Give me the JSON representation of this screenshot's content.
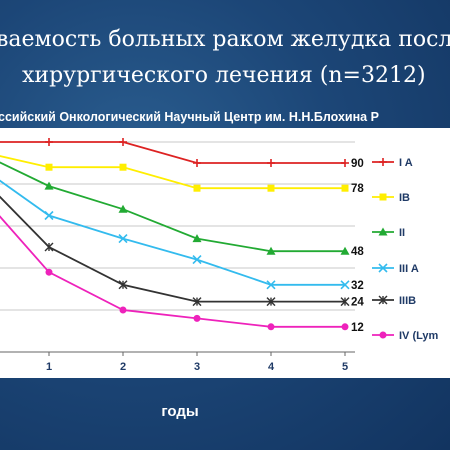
{
  "title": {
    "line1": "ваемость больных раком желудка после",
    "line2": "хирургического лечения (n=3212)"
  },
  "subtitle": "ссийский Онкологический Научный Центр им. Н.Н.Блохина Р",
  "xlabel": "годы",
  "chart_data": {
    "type": "line",
    "title": "",
    "xlabel": "годы",
    "ylabel": "",
    "x": [
      0,
      1,
      2,
      3,
      4,
      5
    ],
    "xticks": [
      "1",
      "2",
      "3",
      "4",
      "5"
    ],
    "ylim": [
      0,
      100
    ],
    "grid": true,
    "legend_position": "right",
    "series": [
      {
        "name": "I A",
        "color": "#dd2222",
        "marker": "plus",
        "values": [
          100,
          100,
          100,
          90,
          90,
          90
        ],
        "end_label": "90"
      },
      {
        "name": "IB",
        "color": "#ffee00",
        "marker": "square",
        "values": [
          96,
          88,
          88,
          78,
          78,
          78
        ],
        "end_label": "78"
      },
      {
        "name": "II",
        "color": "#22aa33",
        "marker": "triangle",
        "values": [
          96,
          79,
          68,
          54,
          48,
          48
        ],
        "end_label": "48"
      },
      {
        "name": "III A",
        "color": "#33bbee",
        "marker": "x",
        "values": [
          90,
          65,
          54,
          44,
          32,
          32
        ],
        "end_label": "32"
      },
      {
        "name": "IIIB",
        "color": "#333333",
        "marker": "star",
        "values": [
          86,
          50,
          32,
          24,
          24,
          24
        ],
        "end_label": "24"
      },
      {
        "name": "IV (Lym",
        "color": "#ee22bb",
        "marker": "circle",
        "values": [
          78,
          38,
          20,
          16,
          12,
          12
        ],
        "end_label": "12"
      }
    ]
  }
}
